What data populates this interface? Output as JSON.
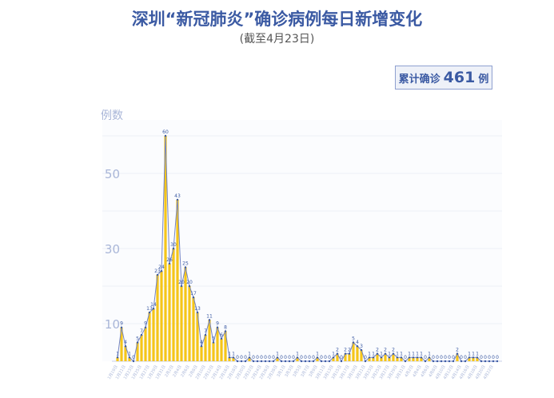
{
  "chart_data": {
    "type": "bar",
    "title": "深圳“新冠肺炎”确诊病例每日新增变化",
    "subtitle": "(截至4月23日)",
    "ylabel": "例数",
    "ylim": [
      0,
      60
    ],
    "yticks": [
      10,
      30,
      50
    ],
    "grid": true,
    "start_date": "2020-01-19",
    "date_label_format": "M月D日",
    "values": [
      1,
      9,
      4,
      1,
      0,
      5,
      7,
      9,
      13,
      14,
      23,
      24,
      60,
      26,
      30,
      43,
      20,
      25,
      20,
      17,
      13,
      4,
      7,
      11,
      5,
      9,
      6,
      8,
      1,
      1,
      0,
      0,
      0,
      1,
      0,
      0,
      0,
      0,
      0,
      0,
      1,
      0,
      0,
      0,
      0,
      1,
      0,
      0,
      0,
      0,
      1,
      0,
      0,
      0,
      1,
      2,
      0,
      2,
      2,
      5,
      4,
      3,
      0,
      1,
      1,
      2,
      1,
      2,
      1,
      2,
      1,
      1,
      0,
      1,
      1,
      1,
      1,
      0,
      1,
      0,
      0,
      0,
      0,
      0,
      0,
      2,
      0,
      0,
      1,
      1,
      1,
      0,
      0,
      0,
      0,
      0
    ],
    "colors": {
      "bar": "#f5c518",
      "line": "#7384c4",
      "label": "#3b5aa3",
      "axis_text": "#a9b6d8"
    }
  },
  "total": {
    "prefix": "累计确诊",
    "value": "461",
    "suffix": "例"
  }
}
